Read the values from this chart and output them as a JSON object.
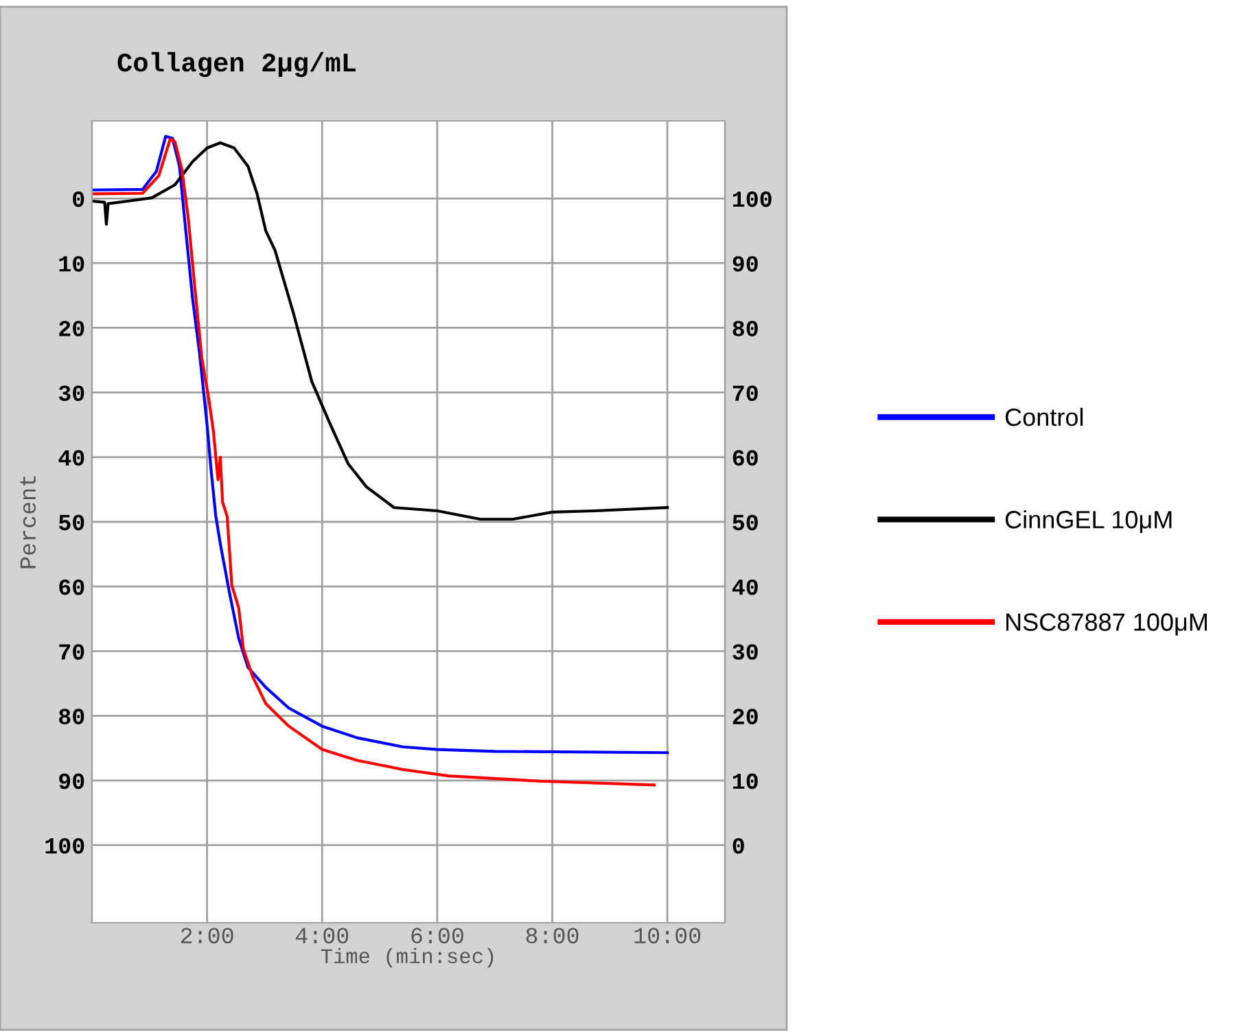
{
  "chart_data": {
    "type": "line",
    "title": "Collagen 2μg/mL",
    "xlabel": "Time (min:sec)",
    "ylabel": "Percent",
    "xlim": [
      0,
      11
    ],
    "xticks": [
      {
        "value": 2,
        "label": "2:00"
      },
      {
        "value": 4,
        "label": "4:00"
      },
      {
        "value": 6,
        "label": "6:00"
      },
      {
        "value": 8,
        "label": "8:00"
      },
      {
        "value": 10,
        "label": "10:00"
      }
    ],
    "ylim": [
      112,
      -12
    ],
    "yticks": [
      0,
      10,
      20,
      30,
      40,
      50,
      60,
      70,
      80,
      90,
      100
    ],
    "y2lim": [
      -12,
      112
    ],
    "y2ticks": [
      0,
      10,
      20,
      30,
      40,
      50,
      60,
      70,
      80,
      90,
      100
    ],
    "grid": true,
    "legend": "right",
    "marker": "none",
    "line_style": "solid",
    "series": [
      {
        "name": "Control",
        "color": "#0000ff",
        "x": [
          0,
          0.88,
          1.12,
          1.28,
          1.4,
          1.52,
          1.63,
          1.75,
          1.87,
          2.0,
          2.07,
          2.15,
          2.23,
          2.39,
          2.55,
          2.71,
          3.02,
          3.42,
          4.0,
          4.61,
          5.4,
          6.0,
          6.99,
          10.0
        ],
        "values": [
          -1.3,
          -1.4,
          -4.2,
          -9.6,
          -9.3,
          -5,
          5,
          15.6,
          24,
          35,
          42,
          49,
          53.4,
          61,
          68,
          72.5,
          75.6,
          78.8,
          81.6,
          83.4,
          84.8,
          85.2,
          85.5,
          85.7
        ]
      },
      {
        "name": "CinnGEL 10μM",
        "color": "#000000",
        "x": [
          0,
          0.22,
          0.25,
          0.28,
          0.64,
          1.04,
          1.44,
          1.75,
          2.0,
          2.23,
          2.47,
          2.71,
          2.87,
          3.02,
          3.18,
          3.5,
          3.82,
          4.13,
          4.45,
          4.77,
          5.25,
          6.0,
          6.75,
          7.31,
          8.0,
          8.74,
          10.0
        ],
        "values": [
          0.4,
          0.6,
          4,
          0.8,
          0.4,
          -0.1,
          -2.1,
          -5.7,
          -7.8,
          -8.6,
          -7.8,
          -5,
          -0.7,
          5,
          8,
          17.7,
          28.3,
          34.7,
          41,
          44.6,
          47.8,
          48.3,
          49.6,
          49.6,
          48.5,
          48.3,
          47.8
        ]
      },
      {
        "name": "NSC87887 100μM",
        "color": "#ff0000",
        "x": [
          0,
          0.88,
          1.16,
          1.36,
          1.44,
          1.56,
          1.67,
          1.79,
          1.91,
          2.03,
          2.11,
          2.19,
          2.23,
          2.27,
          2.35,
          2.43,
          2.55,
          2.63,
          2.79,
          3.02,
          3.42,
          4.0,
          4.61,
          5.4,
          6.2,
          7.79,
          9.77
        ],
        "values": [
          -0.7,
          -0.8,
          -3.5,
          -9.2,
          -8.8,
          -4.6,
          2.8,
          14,
          24.8,
          31,
          36,
          43.5,
          40,
          47,
          49.2,
          59.8,
          63.3,
          69.6,
          73.9,
          78.1,
          81.6,
          85.2,
          86.9,
          88.3,
          89.3,
          90.1,
          90.7
        ]
      }
    ]
  }
}
